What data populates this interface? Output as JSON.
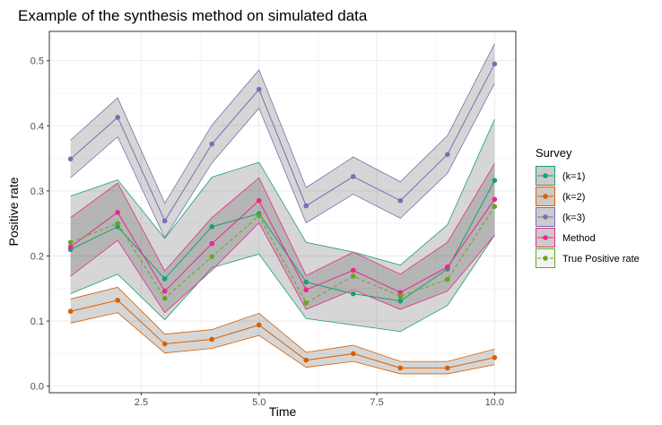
{
  "chart_data": {
    "type": "line",
    "title": "Example of the synthesis method on simulated data",
    "xlabel": "Time",
    "ylabel": "Positive rate",
    "xlim": [
      0.55,
      10.45
    ],
    "ylim": [
      -0.01,
      0.545
    ],
    "x_ticks": [
      2.5,
      5.0,
      7.5,
      10.0
    ],
    "x_tick_labels": [
      "2.5",
      "5.0",
      "7.5",
      "10.0"
    ],
    "y_ticks": [
      0.0,
      0.1,
      0.2,
      0.3,
      0.4,
      0.5
    ],
    "y_tick_labels": [
      "0.0",
      "0.1",
      "0.2",
      "0.3",
      "0.4",
      "0.5"
    ],
    "grid": true,
    "legend_title": "Survey",
    "legend_position": "right",
    "x": [
      1,
      2,
      3,
      4,
      5,
      6,
      7,
      8,
      9,
      10
    ],
    "series": [
      {
        "name": "(k=1)",
        "color": "#1b9e77",
        "dashed": false,
        "values": [
          0.21,
          0.245,
          0.165,
          0.245,
          0.265,
          0.16,
          0.142,
          0.131,
          0.18,
          0.316
        ],
        "lower": [
          0.142,
          0.172,
          0.102,
          0.182,
          0.203,
          0.104,
          0.094,
          0.084,
          0.124,
          0.232
        ],
        "upper": [
          0.292,
          0.317,
          0.227,
          0.321,
          0.344,
          0.221,
          0.206,
          0.186,
          0.248,
          0.41
        ]
      },
      {
        "name": "(k=2)",
        "color": "#d95f02",
        "dashed": false,
        "values": [
          0.115,
          0.132,
          0.065,
          0.072,
          0.094,
          0.04,
          0.05,
          0.028,
          0.028,
          0.044
        ],
        "lower": [
          0.097,
          0.113,
          0.051,
          0.058,
          0.078,
          0.029,
          0.038,
          0.019,
          0.019,
          0.033
        ],
        "upper": [
          0.134,
          0.152,
          0.08,
          0.087,
          0.112,
          0.052,
          0.063,
          0.038,
          0.038,
          0.057
        ]
      },
      {
        "name": "(k=3)",
        "color": "#7570b3",
        "dashed": false,
        "values": [
          0.349,
          0.413,
          0.254,
          0.372,
          0.456,
          0.277,
          0.322,
          0.285,
          0.356,
          0.495
        ],
        "lower": [
          0.32,
          0.383,
          0.228,
          0.343,
          0.427,
          0.251,
          0.295,
          0.258,
          0.327,
          0.465
        ],
        "upper": [
          0.378,
          0.443,
          0.281,
          0.401,
          0.486,
          0.305,
          0.352,
          0.314,
          0.385,
          0.526
        ]
      },
      {
        "name": "Method",
        "color": "#e7298a",
        "dashed": false,
        "values": [
          0.214,
          0.267,
          0.146,
          0.219,
          0.285,
          0.148,
          0.178,
          0.144,
          0.183,
          0.287
        ],
        "lower": [
          0.169,
          0.224,
          0.113,
          0.178,
          0.251,
          0.118,
          0.148,
          0.118,
          0.146,
          0.232
        ],
        "upper": [
          0.259,
          0.312,
          0.177,
          0.259,
          0.32,
          0.17,
          0.206,
          0.172,
          0.221,
          0.342
        ]
      },
      {
        "name": "True Positive rate",
        "color": "#66a61e",
        "dashed": true,
        "values": [
          0.221,
          0.25,
          0.135,
          0.199,
          0.262,
          0.128,
          0.169,
          0.138,
          0.164,
          0.276
        ]
      }
    ]
  }
}
